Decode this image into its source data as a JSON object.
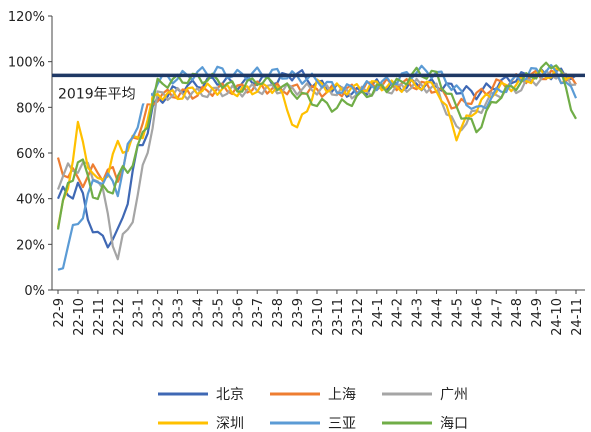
{
  "chart_data": {
    "type": "line",
    "title": "",
    "xlabel": "",
    "ylabel": "",
    "ylim": [
      0,
      120
    ],
    "yticks": [
      "0%",
      "20%",
      "40%",
      "60%",
      "80%",
      "100%",
      "120%"
    ],
    "ytick_values": [
      0,
      20,
      40,
      60,
      80,
      100,
      120
    ],
    "categories": [
      "22-9",
      "22-10",
      "22-11",
      "22-12",
      "23-1",
      "23-2",
      "23-3",
      "23-4",
      "23-5",
      "23-6",
      "23-7",
      "23-8",
      "23-9",
      "23-10",
      "23-11",
      "23-12",
      "24-1",
      "24-2",
      "24-3",
      "24-4",
      "24-5",
      "24-6",
      "24-7",
      "24-8",
      "24-9",
      "24-10",
      "24-11"
    ],
    "grid": false,
    "legend_position": "bottom",
    "annotation": "2019年平均",
    "reference_line_value": 94,
    "series": [
      {
        "name": "北京",
        "color": "#3f68b4",
        "values": [
          40,
          45,
          22,
          23,
          60,
          83,
          88,
          90,
          92,
          90,
          92,
          92,
          95,
          90,
          88,
          86,
          90,
          89,
          90,
          90,
          88,
          86,
          90,
          93,
          94,
          95,
          94
        ]
      },
      {
        "name": "上海",
        "color": "#ee7d31",
        "values": [
          55,
          48,
          52,
          50,
          70,
          85,
          86,
          86,
          88,
          88,
          89,
          88,
          88,
          87,
          87,
          88,
          90,
          90,
          90,
          88,
          80,
          85,
          90,
          92,
          94,
          94,
          90
        ]
      },
      {
        "name": "广州",
        "color": "#a5a5a5",
        "values": [
          48,
          55,
          50,
          14,
          40,
          85,
          86,
          86,
          87,
          87,
          88,
          88,
          88,
          88,
          87,
          86,
          88,
          88,
          90,
          88,
          70,
          78,
          86,
          88,
          92,
          95,
          90
        ]
      },
      {
        "name": "深圳",
        "color": "#ffc000",
        "values": [
          25,
          70,
          45,
          62,
          65,
          86,
          85,
          88,
          88,
          87,
          88,
          89,
          70,
          90,
          88,
          88,
          90,
          89,
          90,
          89,
          68,
          80,
          88,
          90,
          94,
          95,
          94
        ]
      },
      {
        "name": "三亚",
        "color": "#5b9bd5",
        "values": [
          8,
          30,
          50,
          45,
          75,
          92,
          93,
          95,
          96,
          94,
          95,
          95,
          93,
          92,
          88,
          88,
          90,
          92,
          96,
          95,
          88,
          78,
          86,
          92,
          96,
          96,
          84
        ]
      },
      {
        "name": "海口",
        "color": "#70ad47",
        "values": [
          30,
          58,
          40,
          48,
          60,
          90,
          92,
          93,
          92,
          88,
          92,
          90,
          86,
          82,
          80,
          84,
          88,
          90,
          95,
          94,
          80,
          70,
          84,
          90,
          95,
          100,
          75
        ]
      }
    ]
  }
}
